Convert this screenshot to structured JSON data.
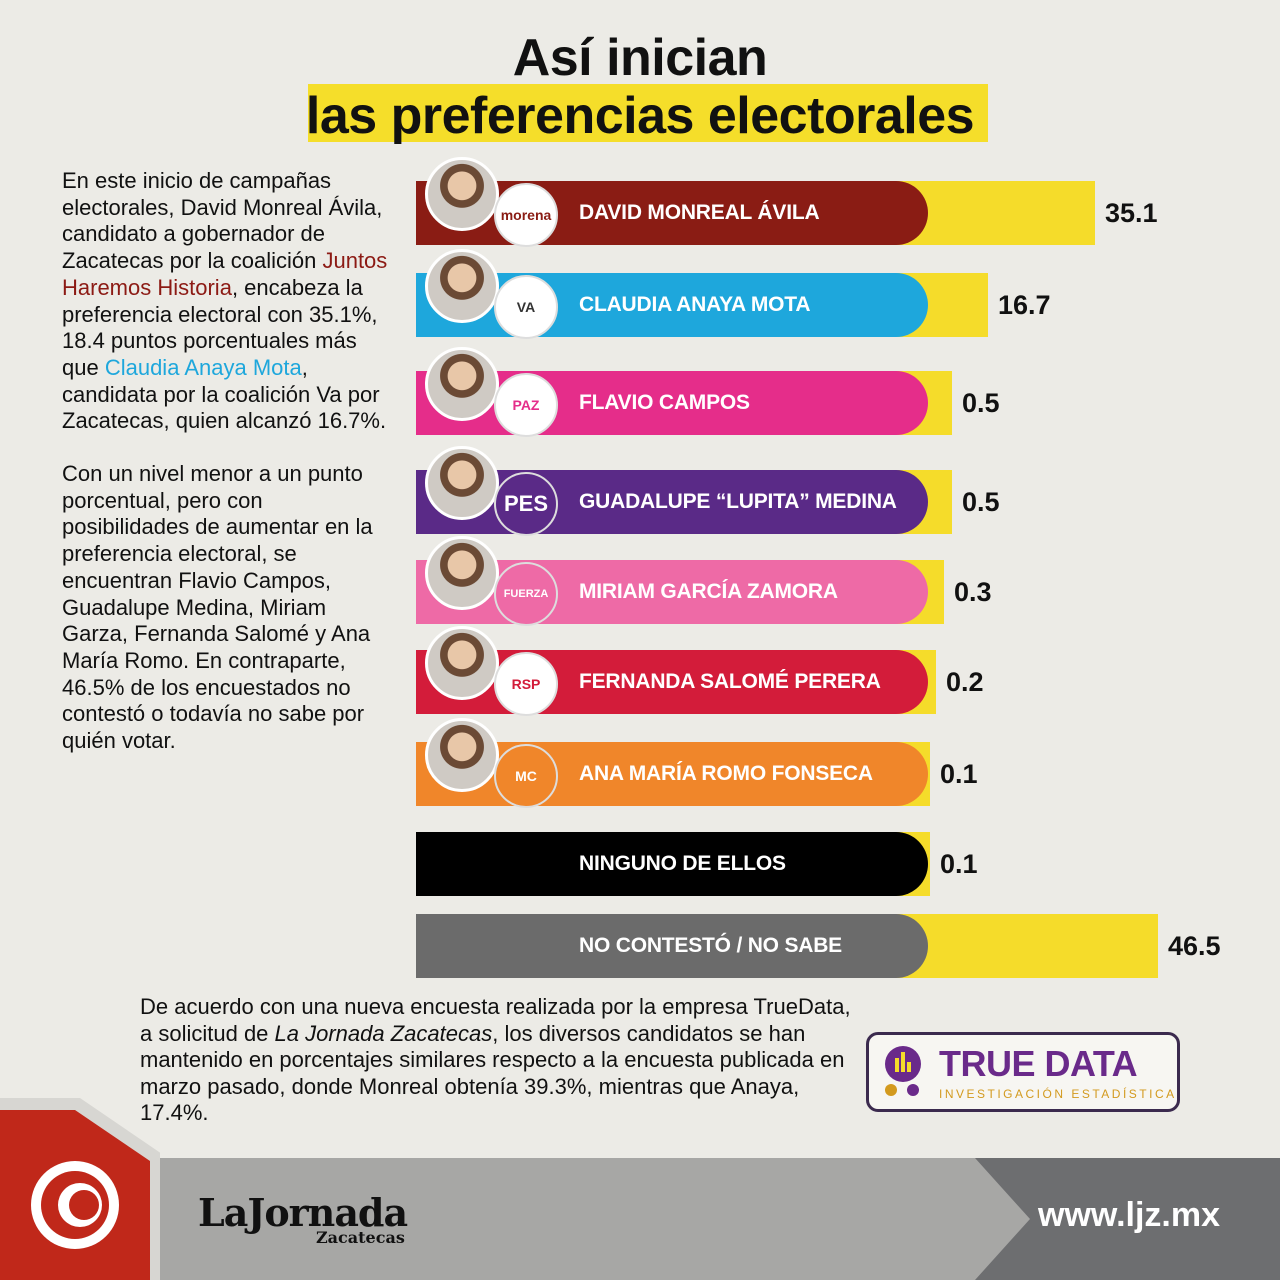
{
  "title": {
    "line1": "Así inician",
    "line2": "las preferencias electorales"
  },
  "intro": {
    "p1_a": "En este inicio de campañas electorales, David Monreal Ávila, candidato a gobernador de Zacatecas por la coalición ",
    "p1_b": "Juntos Haremos Historia",
    "p1_c": ", encabeza la preferencia electoral con 35.1%, 18.4 puntos porcentuales más que ",
    "p1_d": "Claudia Anaya Mota",
    "p1_e": ", candidata por la coalición Va por Zacatecas, quien alcanzó 16.7%.",
    "p2": "Con un nivel menor a un punto porcentual, pero con posibilidades de aumentar en la preferencia electoral, se encuentran Flavio Campos, Guadalupe Medina, Miriam Garza, Fernanda Salomé y Ana María Romo. En contraparte, 46.5% de los encuestados no contestó o todavía no sabe por quién votar."
  },
  "chart_data": {
    "type": "bar",
    "orientation": "horizontal",
    "categories": [
      "DAVID MONREAL ÁVILA",
      "CLAUDIA ANAYA MOTA",
      "FLAVIO CAMPOS",
      "GUADALUPE “LUPITA”  MEDINA",
      "MIRIAM GARCÍA ZAMORA",
      "FERNANDA SALOMÉ PERERA",
      "ANA MARÍA ROMO FONSECA",
      "NINGUNO DE ELLOS",
      "NO CONTESTÓ / NO SABE"
    ],
    "values": [
      35.1,
      16.7,
      0.5,
      0.5,
      0.3,
      0.2,
      0.1,
      0.1,
      46.5
    ],
    "labels": [
      "35.1",
      "16.7",
      "0.5",
      "0.5",
      "0.3",
      "0.2",
      "0.1",
      "0.1",
      "46.5"
    ],
    "colors": [
      "#8a1c14",
      "#1ea7dc",
      "#e52d8a",
      "#5a2a87",
      "#ee6aa6",
      "#d31c3a",
      "#f0862a",
      "#000000",
      "#6b6b6b"
    ],
    "accent": "#f5dc2a",
    "party_logos": [
      "Juntos haremos historia / morena / PT",
      "Va por Zacatecas",
      "PAZ",
      "PES",
      "Fuerza México",
      "RSP Redes",
      "Movimiento Ciudadano",
      "",
      ""
    ]
  },
  "bottom": {
    "a": "De acuerdo con una nueva encuesta realizada por la empresa TrueData, a solicitud de ",
    "b": "La Jornada Zacatecas",
    "c": ", los diversos candidatos se han mantenido en porcentajes similares respecto a la encuesta publicada en marzo pasado, donde Monreal obtenía 39.3%, mientras que Anaya, 17.4%."
  },
  "truedata": {
    "title": "TRUE DATA",
    "subtitle": "INVESTIGACIÓN  ESTADÍSTICA"
  },
  "footer": {
    "brand": "LaJornada",
    "brand_sub": "Zacatecas",
    "url": "www.ljz.mx"
  }
}
